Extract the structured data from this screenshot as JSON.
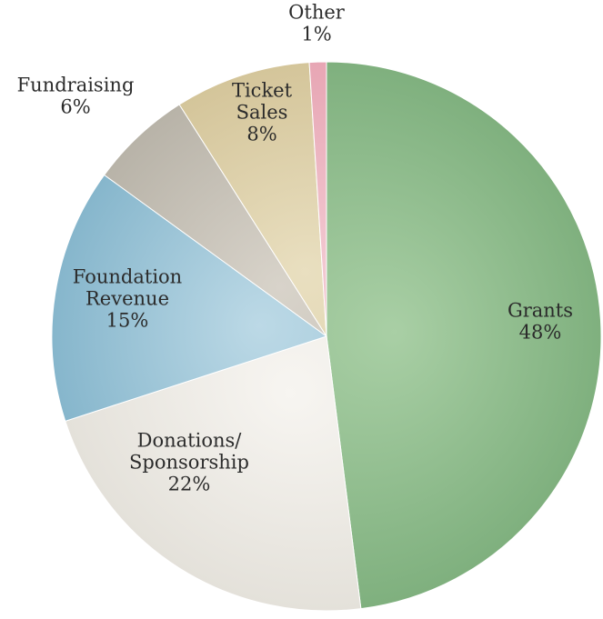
{
  "chart_data": {
    "type": "pie",
    "title": "",
    "start_angle_deg": 0,
    "direction": "clockwise",
    "slices": [
      {
        "name": "Grants",
        "value": 48,
        "label_lines": [
          "Grants",
          "48%"
        ],
        "color": "#7fb07e",
        "color_light": "#a9cfa5"
      },
      {
        "name": "Donations/ Sponsorship",
        "value": 22,
        "label_lines": [
          "Donations/",
          "Sponsorship",
          "22%"
        ],
        "color": "#e4e1da",
        "color_light": "#f7f5f1"
      },
      {
        "name": "Foundation Revenue",
        "value": 15,
        "label_lines": [
          "Foundation",
          "Revenue",
          "15%"
        ],
        "color": "#86b6cc",
        "color_light": "#bcd9e6"
      },
      {
        "name": "Fundraising",
        "value": 6,
        "label_lines": [
          "Fundraising",
          "6%"
        ],
        "color": "#b8b3a8",
        "color_light": "#d8d3ca"
      },
      {
        "name": "Ticket Sales",
        "value": 8,
        "label_lines": [
          "Ticket",
          "Sales",
          "8%"
        ],
        "color": "#d4c59a",
        "color_light": "#e9dfc0"
      },
      {
        "name": "Other",
        "value": 1,
        "label_lines": [
          "Other",
          "1%"
        ],
        "color": "#e7a6b4",
        "color_light": "#f2c8d1"
      }
    ]
  }
}
